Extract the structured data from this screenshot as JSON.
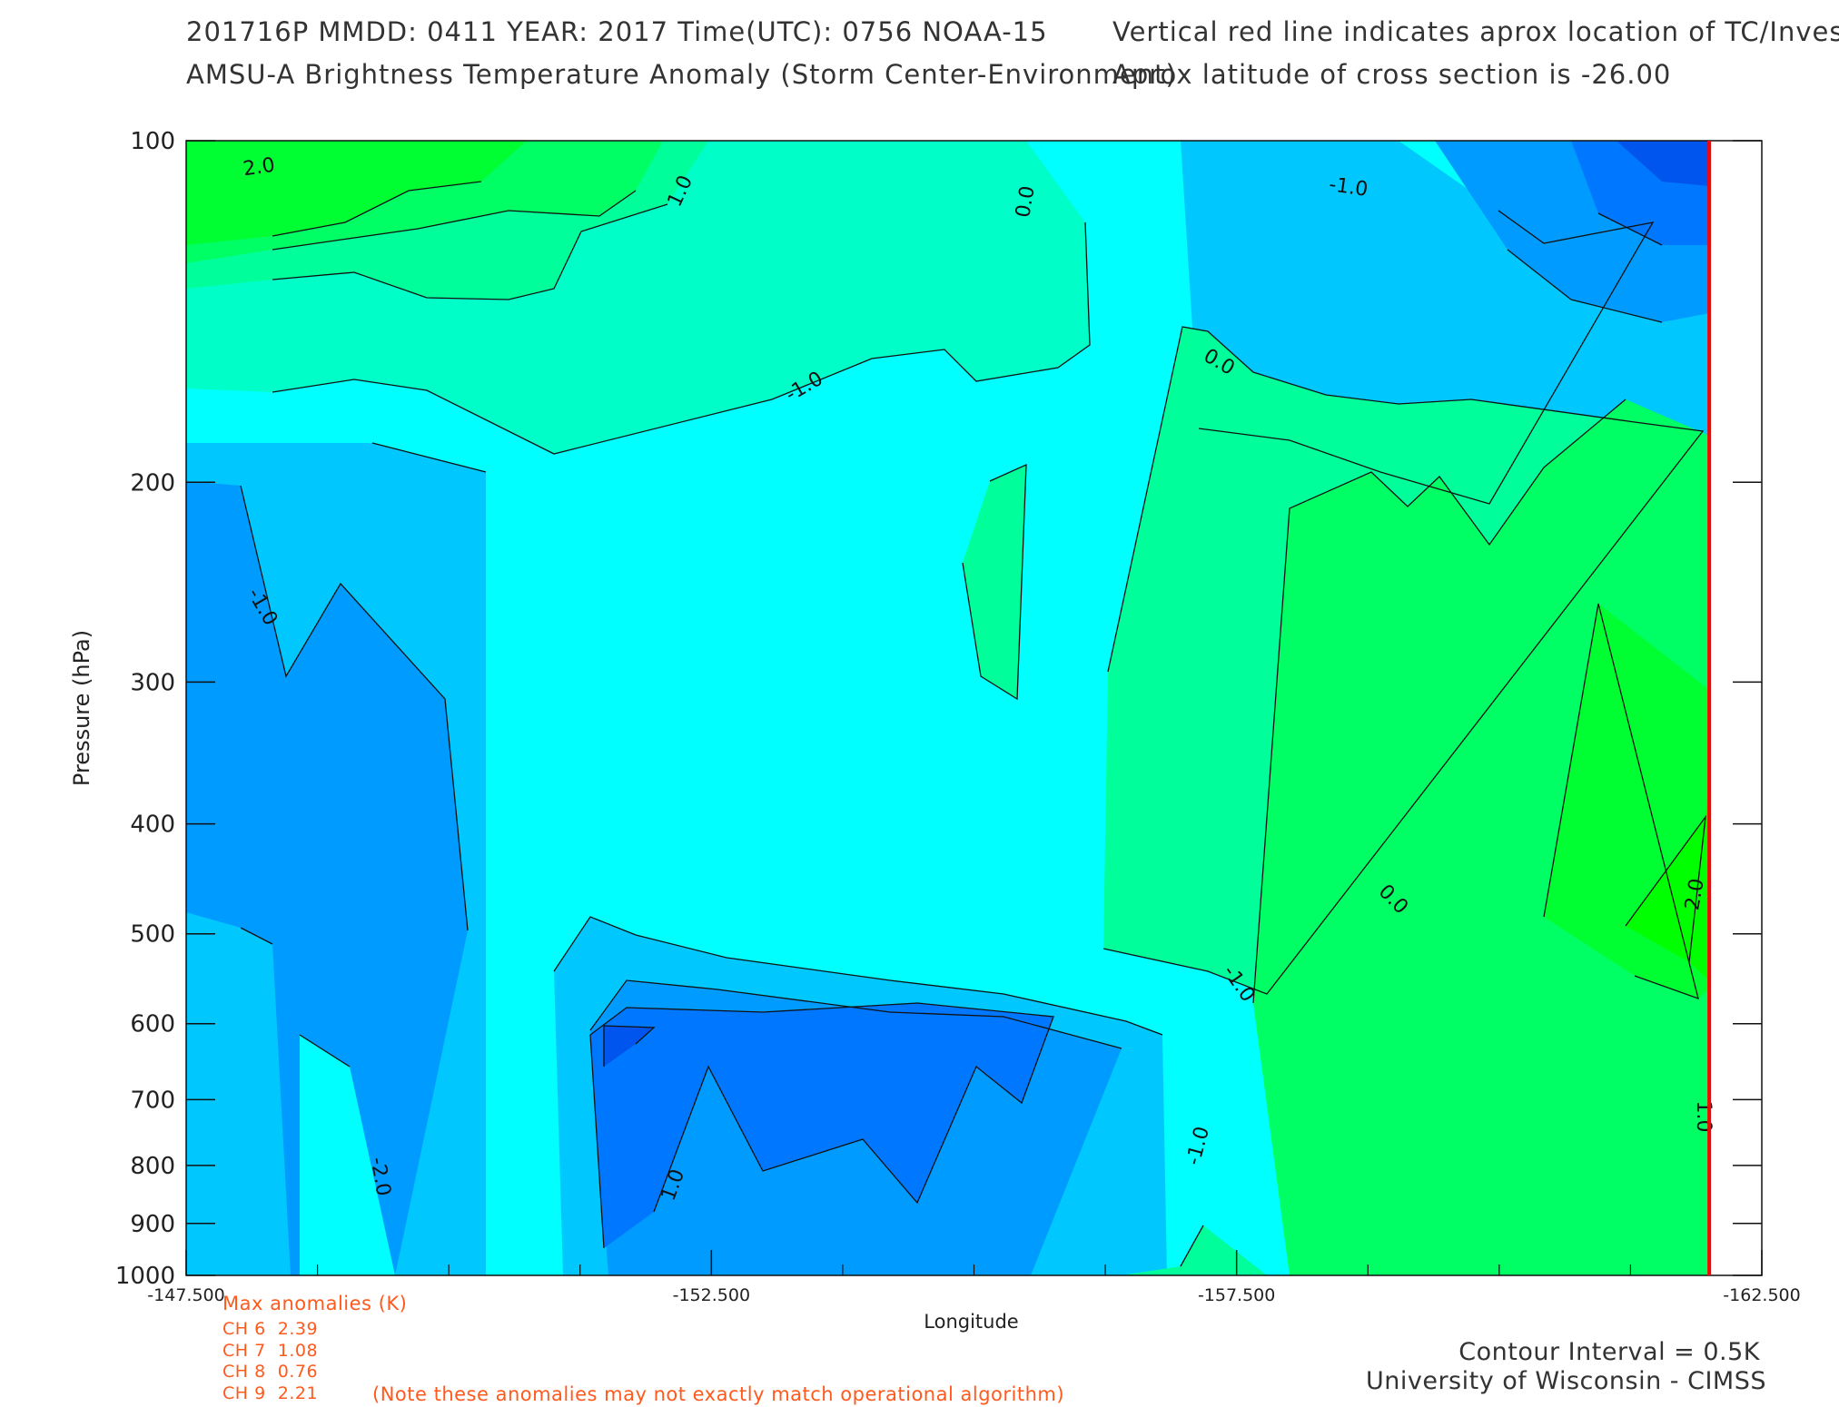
{
  "header": {
    "line1_left": "201716P  MMDD: 0411 YEAR: 2017 Time(UTC): 0756 NOAA-15",
    "line1_right": "Vertical red line indicates aprox location of TC/Invest",
    "line2_left": "AMSU-A Brightness Temperature Anomaly (Storm Center-Environment)",
    "line2_right": "Aprox latitude of cross section is -26.00"
  },
  "anomalies": {
    "title": "Max anomalies (K)",
    "channels": [
      {
        "label": "CH 6",
        "value": "2.39"
      },
      {
        "label": "CH 7",
        "value": "1.08"
      },
      {
        "label": "CH 8",
        "value": "0.76"
      },
      {
        "label": "CH 9",
        "value": "2.21"
      }
    ],
    "note": "(Note these anomalies may not exactly match operational algorithm)"
  },
  "footer": {
    "contour_interval": "Contour Interval = 0.5K",
    "credit": "University of Wisconsin - CIMSS"
  },
  "colors": {
    "red_line": "#ff0000",
    "annotation": "#ff5a1e",
    "levels": {
      "-2.5": "#0055ee",
      "-2.0": "#0077ff",
      "-1.5": "#009bff",
      "-1.0": "#00c8ff",
      "-0.5": "#00ffff",
      "0.0": "#00ffc8",
      "0.5": "#00ff9b",
      "1.0": "#00ff64",
      "1.5": "#00ff32",
      "2.0": "#00ff00"
    }
  },
  "chart_data": {
    "type": "heatmap",
    "subtype": "filled contour cross-section",
    "xlabel": "Longitude",
    "ylabel": "Pressure (hPa)",
    "xlim": [
      -147.5,
      -162.5
    ],
    "ylim": [
      1000,
      100
    ],
    "y_scale": "log",
    "x_ticks": [
      "-147.500",
      "-152.500",
      "-157.500",
      "-162.500"
    ],
    "y_ticks": [
      "100",
      "200",
      "300",
      "400",
      "500",
      "600",
      "700",
      "800",
      "900",
      "1000"
    ],
    "storm_longitude": -162.0,
    "contour_interval_k": 0.5,
    "contour_labels": [
      "2.0",
      "1.0",
      "0.0",
      "-1.0",
      "-1.0",
      "0.0",
      "-1.0",
      "-1.0",
      "-2.0",
      "-1.0",
      "1.0",
      "0.0",
      "2.0",
      "1.0"
    ],
    "notable_features": [
      {
        "value": 2.0,
        "lon": -148.0,
        "p": 110,
        "sign": "warm"
      },
      {
        "value": -2.0,
        "lon": -161.5,
        "p": 100,
        "sign": "cold"
      },
      {
        "value": -2.0,
        "lon": -151.5,
        "p": 600,
        "sign": "cold"
      },
      {
        "value": 2.0,
        "lon": -162.3,
        "p": 500,
        "sign": "warm"
      }
    ]
  }
}
